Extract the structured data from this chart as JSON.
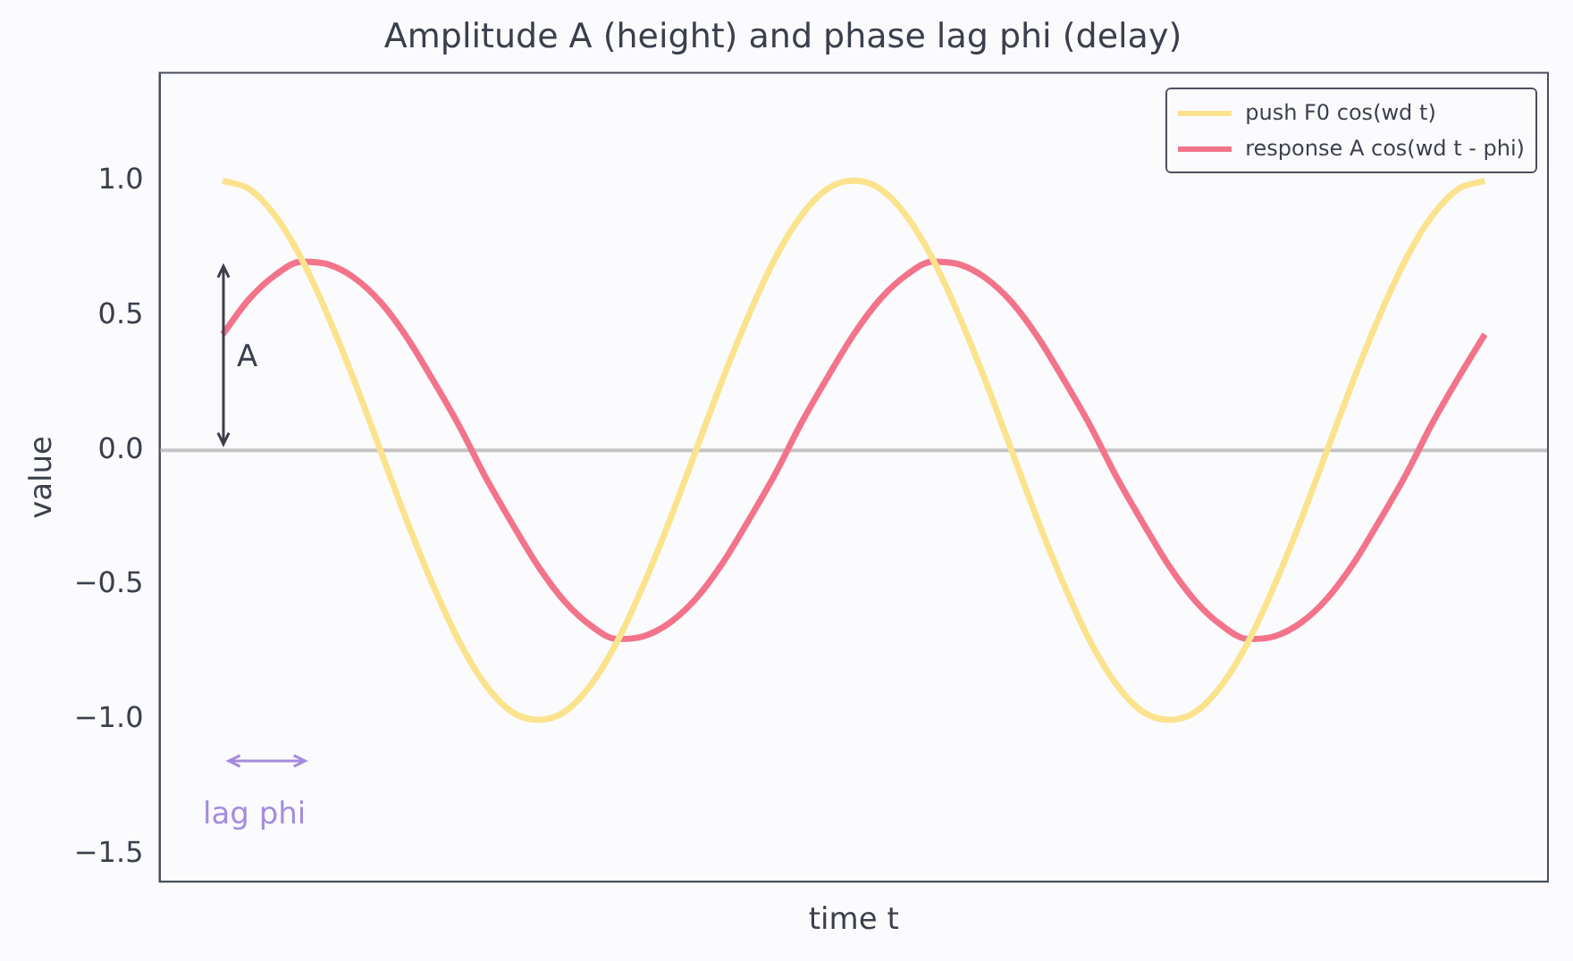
{
  "chart_data": {
    "type": "line",
    "title": "Amplitude A (height) and phase lag phi (delay)",
    "xlabel": "time t",
    "ylabel": "value",
    "categories": [
      null,
      null,
      null,
      null,
      null,
      null,
      null,
      null,
      null,
      null,
      null,
      null,
      null,
      null,
      null,
      null,
      null,
      null,
      null,
      null,
      null,
      null,
      null,
      null,
      null,
      null,
      null,
      null,
      null,
      null,
      null,
      null,
      null,
      null,
      null,
      null,
      null,
      null,
      null,
      null,
      null,
      null,
      null,
      null,
      null,
      null,
      null,
      null,
      null
    ],
    "series": [
      {
        "name": "push  F0 cos(wd t)",
        "color": "#fbe38e",
        "values": [
          1,
          0.97,
          0.87,
          0.71,
          0.5,
          0.26,
          0,
          -0.26,
          -0.5,
          -0.71,
          -0.87,
          -0.97,
          -1,
          -0.97,
          -0.87,
          -0.71,
          -0.5,
          -0.26,
          0,
          0.26,
          0.5,
          0.71,
          0.87,
          0.97,
          1,
          0.97,
          0.87,
          0.71,
          0.5,
          0.26,
          0,
          -0.26,
          -0.5,
          -0.71,
          -0.87,
          -0.97,
          -1,
          -0.97,
          -0.87,
          -0.71,
          -0.5,
          -0.26,
          0,
          0.26,
          0.5,
          0.71,
          0.87,
          0.97,
          1
        ]
      },
      {
        "name": "response  A cos(wd t - phi)",
        "color": "#f2738a",
        "values": [
          0.43,
          0.56,
          0.65,
          0.7,
          0.69,
          0.64,
          0.55,
          0.42,
          0.26,
          0.09,
          -0.1,
          -0.27,
          -0.43,
          -0.56,
          -0.65,
          -0.7,
          -0.69,
          -0.64,
          -0.55,
          -0.42,
          -0.26,
          -0.09,
          0.1,
          0.27,
          0.43,
          0.56,
          0.65,
          0.7,
          0.69,
          0.64,
          0.55,
          0.42,
          0.26,
          0.09,
          -0.1,
          -0.27,
          -0.43,
          -0.56,
          -0.65,
          -0.7,
          -0.69,
          -0.64,
          -0.55,
          -0.42,
          -0.26,
          -0.09,
          0.1,
          0.27,
          0.43
        ]
      }
    ],
    "ylim": [
      -1.6,
      1.4
    ],
    "yticks": [
      {
        "value": -1.5,
        "label": "−1.5"
      },
      {
        "value": -1.0,
        "label": "−1.0"
      },
      {
        "value": -0.5,
        "label": "−0.5"
      },
      {
        "value": 0.0,
        "label": "0.0"
      },
      {
        "value": 0.5,
        "label": "0.5"
      },
      {
        "value": 1.0,
        "label": "1.0"
      }
    ],
    "ref_lines": [
      {
        "axis": "y",
        "value": 0,
        "color": "#c4c4c4"
      }
    ],
    "annotations": [
      "A",
      "lag phi"
    ],
    "legend": "top right",
    "grid": false,
    "marker": "none",
    "line_style": "solid",
    "tick_labels": "y"
  }
}
